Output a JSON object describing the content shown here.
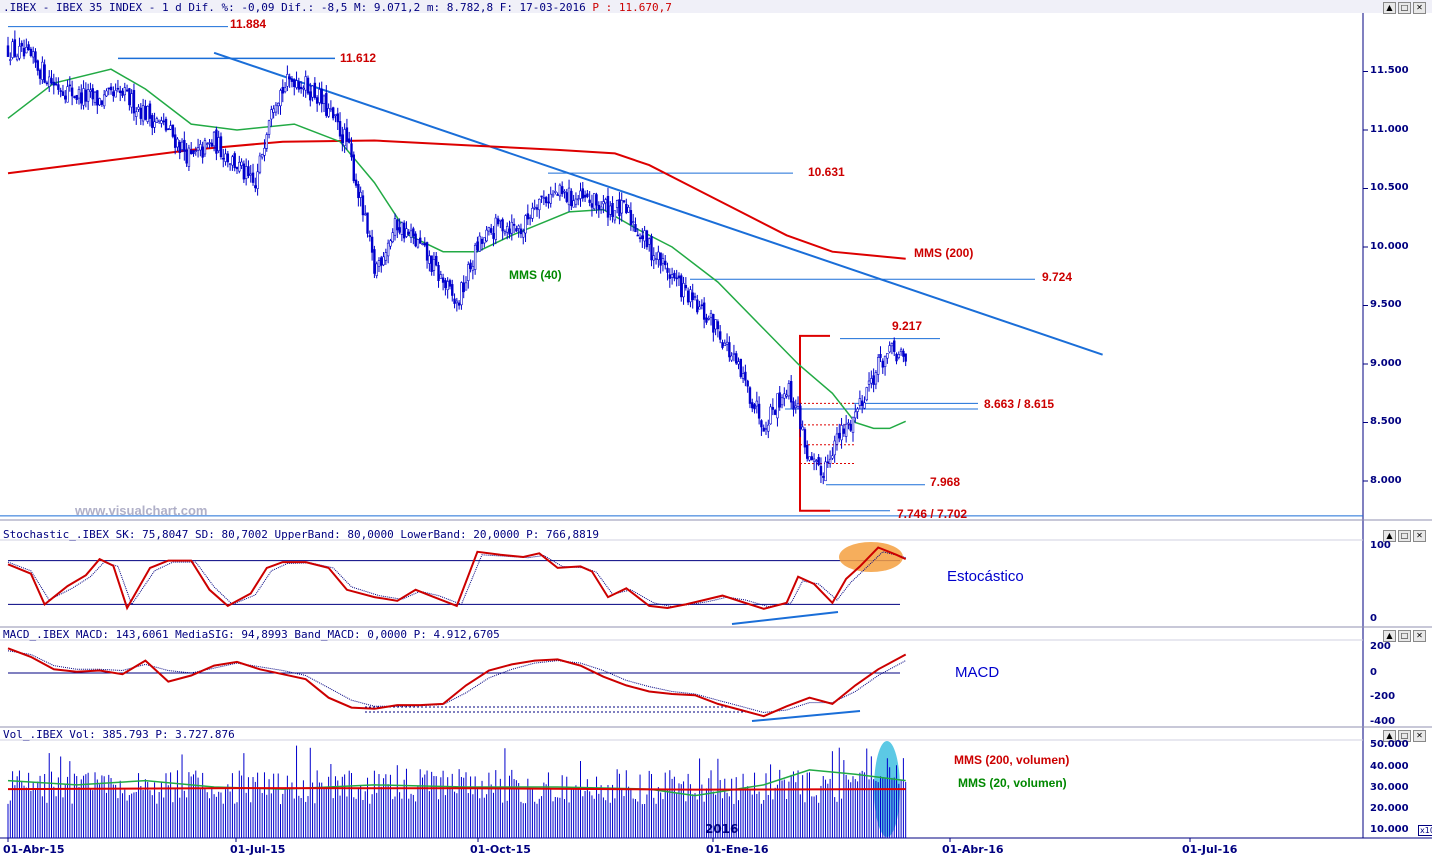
{
  "headers": {
    "price": ".IBEX - IBEX 35 INDEX -  1 d Dif. %: -0,09 Dif.: -8,5 M: 9.071,2 m: 8.782,8 F: 17-03-2016",
    "price_p": "P : 11.670,7",
    "stoch": "Stochastic_.IBEX SK: 75,8047 SD: 80,7002 UpperBand: 80,0000 LowerBand: 20,0000 P: 766,8819",
    "macd": "MACD_.IBEX MACD: 143,6061 MediaSIG: 94,8993 Band_MACD: 0,0000 P: 4.912,6705",
    "vol": "Vol_.IBEX Vol: 385.793 P: 3.727.876"
  },
  "window_buttons": [
    "▲",
    "□",
    "✕"
  ],
  "watermark": "www.visualchart.com",
  "labels": {
    "l11884": "11.884",
    "l11612": "11.612",
    "l10631": "10.631",
    "l9724": "9.724",
    "l9217": "9.217",
    "l8663": "8.663 / 8.615",
    "l7968": "7.968",
    "l7746": "7.746 / 7.702",
    "mms200": "MMS (200)",
    "mms40": "MMS (40)",
    "estocastico": "Estocástico",
    "macd": "MACD",
    "mms200vol": "MMS (200, volumen)",
    "mms20vol": "MMS (20, volumen)",
    "year": "2016",
    "x10": "x10"
  },
  "colors": {
    "price": "#0000cc",
    "mms200": "#dd0000",
    "mms40": "#22aa44",
    "trendline": "#1a6ed8",
    "axis": "#000080"
  },
  "chart_data": [
    {
      "type": "candlestick",
      "name": "IBEX 35 INDEX",
      "x_labels": [
        "01-Abr-15",
        "01-Jul-15",
        "01-Oct-15",
        "01-Ene-16",
        "01-Abr-16",
        "01-Jul-16"
      ],
      "y_ticks": [
        "11.500",
        "11.000",
        "10.500",
        "10.000",
        "9.500",
        "9.000",
        "8.500",
        "8.000"
      ],
      "ylim": [
        7700,
        11900
      ],
      "close_path": [
        [
          0,
          11700
        ],
        [
          10,
          11600
        ],
        [
          20,
          11400
        ],
        [
          30,
          11300
        ],
        [
          40,
          11250
        ],
        [
          50,
          11300
        ],
        [
          60,
          11150
        ],
        [
          70,
          11000
        ],
        [
          80,
          10750
        ],
        [
          90,
          10900
        ],
        [
          100,
          10700
        ],
        [
          108,
          10500
        ],
        [
          115,
          11250
        ],
        [
          125,
          11450
        ],
        [
          135,
          11300
        ],
        [
          140,
          11150
        ],
        [
          148,
          10900
        ],
        [
          155,
          10300
        ],
        [
          160,
          9800
        ],
        [
          170,
          10200
        ],
        [
          180,
          10000
        ],
        [
          190,
          9700
        ],
        [
          196,
          9500
        ],
        [
          205,
          10000
        ],
        [
          215,
          10200
        ],
        [
          225,
          10150
        ],
        [
          230,
          10400
        ],
        [
          240,
          10450
        ],
        [
          250,
          10400
        ],
        [
          260,
          10350
        ],
        [
          270,
          10300
        ],
        [
          280,
          10000
        ],
        [
          290,
          9750
        ],
        [
          300,
          9500
        ],
        [
          310,
          9300
        ],
        [
          320,
          8900
        ],
        [
          330,
          8500
        ],
        [
          340,
          8800
        ],
        [
          345,
          8600
        ],
        [
          350,
          8150
        ],
        [
          355,
          8050
        ],
        [
          360,
          8300
        ],
        [
          368,
          8500
        ],
        [
          375,
          8800
        ],
        [
          382,
          9050
        ],
        [
          387,
          9100
        ],
        [
          392,
          9000
        ]
      ],
      "series": [
        {
          "name": "MMS (200)",
          "values": [
            [
              0,
              10630
            ],
            [
              40,
              10730
            ],
            [
              80,
              10830
            ],
            [
              120,
              10900
            ],
            [
              160,
              10910
            ],
            [
              200,
              10870
            ],
            [
              240,
              10830
            ],
            [
              265,
              10800
            ],
            [
              280,
              10700
            ],
            [
              300,
              10500
            ],
            [
              320,
              10300
            ],
            [
              340,
              10100
            ],
            [
              360,
              9960
            ],
            [
              392,
              9900
            ]
          ]
        },
        {
          "name": "MMS (40)",
          "values": [
            [
              0,
              11100
            ],
            [
              20,
              11400
            ],
            [
              45,
              11520
            ],
            [
              60,
              11350
            ],
            [
              80,
              11050
            ],
            [
              100,
              11000
            ],
            [
              125,
              11050
            ],
            [
              145,
              10900
            ],
            [
              160,
              10550
            ],
            [
              175,
              10100
            ],
            [
              190,
              9960
            ],
            [
              205,
              9960
            ],
            [
              220,
              10100
            ],
            [
              235,
              10220
            ],
            [
              245,
              10300
            ],
            [
              260,
              10320
            ],
            [
              275,
              10150
            ],
            [
              290,
              10000
            ],
            [
              310,
              9700
            ],
            [
              330,
              9300
            ],
            [
              345,
              9000
            ],
            [
              360,
              8750
            ],
            [
              370,
              8500
            ],
            [
              378,
              8450
            ],
            [
              385,
              8450
            ],
            [
              392,
              8510
            ]
          ]
        }
      ],
      "levels": [
        11884,
        11612,
        10631,
        9724,
        9217,
        8663,
        8615,
        7968,
        7746,
        7702
      ],
      "trendline": [
        [
          90,
          11660
        ],
        [
          478,
          9080
        ]
      ]
    },
    {
      "type": "line",
      "name": "Stochastic",
      "y_ticks": [
        "100",
        "0"
      ],
      "ylim": [
        -5,
        105
      ],
      "bands": [
        80,
        20
      ],
      "sk": [
        [
          0,
          75
        ],
        [
          10,
          62
        ],
        [
          16,
          20
        ],
        [
          26,
          45
        ],
        [
          34,
          60
        ],
        [
          40,
          82
        ],
        [
          46,
          73
        ],
        [
          52,
          15
        ],
        [
          62,
          70
        ],
        [
          70,
          80
        ],
        [
          80,
          80
        ],
        [
          88,
          40
        ],
        [
          96,
          18
        ],
        [
          106,
          35
        ],
        [
          113,
          70
        ],
        [
          120,
          78
        ],
        [
          130,
          78
        ],
        [
          140,
          70
        ],
        [
          148,
          40
        ],
        [
          160,
          30
        ],
        [
          170,
          25
        ],
        [
          178,
          40
        ],
        [
          186,
          30
        ],
        [
          196,
          18
        ],
        [
          205,
          92
        ],
        [
          215,
          88
        ],
        [
          225,
          85
        ],
        [
          232,
          90
        ],
        [
          240,
          70
        ],
        [
          250,
          72
        ],
        [
          255,
          65
        ],
        [
          262,
          30
        ],
        [
          270,
          42
        ],
        [
          280,
          18
        ],
        [
          288,
          15
        ],
        [
          296,
          20
        ],
        [
          304,
          26
        ],
        [
          312,
          32
        ],
        [
          320,
          24
        ],
        [
          330,
          14
        ],
        [
          340,
          22
        ],
        [
          345,
          58
        ],
        [
          352,
          48
        ],
        [
          360,
          22
        ],
        [
          366,
          55
        ],
        [
          372,
          72
        ],
        [
          380,
          98
        ],
        [
          388,
          88
        ],
        [
          392,
          82
        ]
      ],
      "sd": [
        [
          0,
          78
        ],
        [
          10,
          66
        ],
        [
          18,
          26
        ],
        [
          28,
          42
        ],
        [
          36,
          58
        ],
        [
          42,
          78
        ],
        [
          48,
          72
        ],
        [
          54,
          20
        ],
        [
          64,
          66
        ],
        [
          72,
          78
        ],
        [
          82,
          78
        ],
        [
          90,
          44
        ],
        [
          98,
          20
        ],
        [
          108,
          33
        ],
        [
          115,
          66
        ],
        [
          122,
          76
        ],
        [
          132,
          77
        ],
        [
          142,
          70
        ],
        [
          150,
          44
        ],
        [
          162,
          32
        ],
        [
          172,
          27
        ],
        [
          180,
          38
        ],
        [
          188,
          32
        ],
        [
          198,
          20
        ],
        [
          207,
          88
        ],
        [
          217,
          86
        ],
        [
          227,
          84
        ],
        [
          234,
          87
        ],
        [
          242,
          72
        ],
        [
          252,
          70
        ],
        [
          257,
          64
        ],
        [
          264,
          34
        ],
        [
          272,
          40
        ],
        [
          282,
          22
        ],
        [
          290,
          17
        ],
        [
          298,
          20
        ],
        [
          306,
          24
        ],
        [
          314,
          30
        ],
        [
          322,
          26
        ],
        [
          332,
          17
        ],
        [
          342,
          22
        ],
        [
          347,
          52
        ],
        [
          354,
          48
        ],
        [
          362,
          26
        ],
        [
          368,
          50
        ],
        [
          374,
          68
        ],
        [
          382,
          92
        ],
        [
          390,
          86
        ],
        [
          392,
          84
        ]
      ]
    },
    {
      "type": "line",
      "name": "MACD",
      "y_ticks": [
        "200",
        "0",
        "-200",
        "-400"
      ],
      "ylim": [
        -420,
        220
      ],
      "macd": [
        [
          0,
          200
        ],
        [
          10,
          130
        ],
        [
          20,
          30
        ],
        [
          30,
          10
        ],
        [
          40,
          20
        ],
        [
          50,
          -10
        ],
        [
          60,
          100
        ],
        [
          70,
          -70
        ],
        [
          80,
          -20
        ],
        [
          90,
          60
        ],
        [
          100,
          90
        ],
        [
          110,
          30
        ],
        [
          120,
          -10
        ],
        [
          130,
          -50
        ],
        [
          140,
          -200
        ],
        [
          150,
          -280
        ],
        [
          160,
          -290
        ],
        [
          170,
          -260
        ],
        [
          180,
          -260
        ],
        [
          190,
          -250
        ],
        [
          200,
          -100
        ],
        [
          210,
          20
        ],
        [
          220,
          70
        ],
        [
          230,
          100
        ],
        [
          240,
          110
        ],
        [
          250,
          60
        ],
        [
          260,
          -30
        ],
        [
          270,
          -100
        ],
        [
          280,
          -150
        ],
        [
          290,
          -170
        ],
        [
          300,
          -180
        ],
        [
          310,
          -250
        ],
        [
          320,
          -300
        ],
        [
          330,
          -350
        ],
        [
          340,
          -270
        ],
        [
          350,
          -200
        ],
        [
          360,
          -250
        ],
        [
          370,
          -100
        ],
        [
          380,
          30
        ],
        [
          392,
          150
        ]
      ],
      "signal": [
        [
          0,
          180
        ],
        [
          10,
          150
        ],
        [
          20,
          60
        ],
        [
          30,
          30
        ],
        [
          40,
          30
        ],
        [
          50,
          20
        ],
        [
          60,
          70
        ],
        [
          70,
          20
        ],
        [
          80,
          0
        ],
        [
          90,
          40
        ],
        [
          100,
          80
        ],
        [
          110,
          50
        ],
        [
          120,
          20
        ],
        [
          130,
          -20
        ],
        [
          140,
          -120
        ],
        [
          150,
          -220
        ],
        [
          160,
          -270
        ],
        [
          170,
          -270
        ],
        [
          180,
          -265
        ],
        [
          190,
          -255
        ],
        [
          200,
          -160
        ],
        [
          210,
          -40
        ],
        [
          220,
          30
        ],
        [
          230,
          80
        ],
        [
          240,
          100
        ],
        [
          250,
          80
        ],
        [
          260,
          20
        ],
        [
          270,
          -60
        ],
        [
          280,
          -110
        ],
        [
          290,
          -150
        ],
        [
          300,
          -170
        ],
        [
          310,
          -220
        ],
        [
          320,
          -270
        ],
        [
          330,
          -320
        ],
        [
          340,
          -300
        ],
        [
          350,
          -240
        ],
        [
          360,
          -240
        ],
        [
          370,
          -150
        ],
        [
          380,
          -20
        ],
        [
          392,
          100
        ]
      ],
      "zero_line": 0
    },
    {
      "type": "bar",
      "name": "Vol",
      "y_ticks": [
        "50.000",
        "40.000",
        "30.000",
        "20.000",
        "10.000"
      ],
      "ylim": [
        5000,
        52000
      ],
      "ma200": [
        [
          0,
          29000
        ],
        [
          100,
          29500
        ],
        [
          200,
          29400
        ],
        [
          300,
          28800
        ],
        [
          392,
          29000
        ]
      ],
      "ma20": [
        [
          0,
          33000
        ],
        [
          30,
          31000
        ],
        [
          60,
          33000
        ],
        [
          90,
          30000
        ],
        [
          120,
          29000
        ],
        [
          160,
          31000
        ],
        [
          200,
          30000
        ],
        [
          240,
          30000
        ],
        [
          280,
          29000
        ],
        [
          300,
          26000
        ],
        [
          330,
          31000
        ],
        [
          350,
          38000
        ],
        [
          370,
          36000
        ],
        [
          392,
          33000
        ]
      ]
    }
  ]
}
